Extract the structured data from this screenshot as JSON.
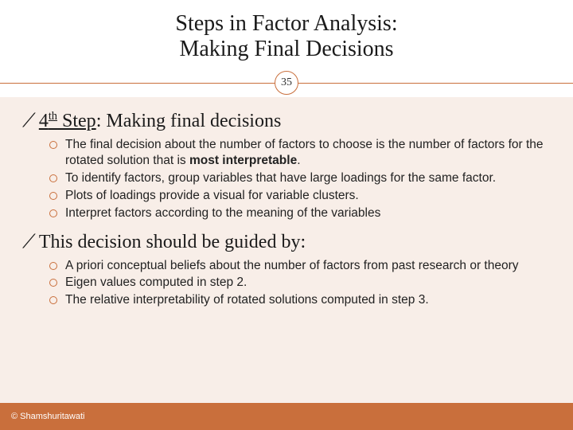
{
  "colors": {
    "accent": "#c96f3c",
    "body_bg": "#f8eee8",
    "text": "#1a1a1a",
    "footer_bg": "#c96f3c",
    "footer_text": "#ffffff"
  },
  "typography": {
    "title_font": "Georgia, serif",
    "title_size_pt": 21,
    "heading_size_pt": 18,
    "body_font": "Arial, sans-serif",
    "body_size_pt": 12,
    "footer_size_pt": 8
  },
  "page_number": "35",
  "title": {
    "line1": "Steps in Factor Analysis:",
    "line2": "Making Final Decisions"
  },
  "sections": [
    {
      "heading_prefix_num": "4",
      "heading_prefix_sup": "th",
      "heading_prefix_word": " Step",
      "heading_rest": ": Making final decisions",
      "bullets": [
        {
          "pre": "The final decision about the number of factors to choose is the number of factors for the rotated solution that is ",
          "bold": "most interpretable",
          "post": "."
        },
        {
          "pre": "To identify factors, group variables that have large loadings for the same factor.",
          "bold": "",
          "post": ""
        },
        {
          "pre": "Plots of loadings provide a visual for variable clusters.",
          "bold": "",
          "post": ""
        },
        {
          "pre": "Interpret factors according to the meaning of the variables",
          "bold": "",
          "post": ""
        }
      ]
    },
    {
      "heading_plain": "This decision should be guided by:",
      "bullets": [
        {
          "pre": "A priori conceptual beliefs about the number of factors from past research or theory",
          "bold": "",
          "post": ""
        },
        {
          "pre": "Eigen values computed in step 2.",
          "bold": "",
          "post": ""
        },
        {
          "pre": "The relative interpretability of rotated solutions computed in step 3.",
          "bold": "",
          "post": ""
        }
      ]
    }
  ],
  "footer": "© Shamshuritawati"
}
